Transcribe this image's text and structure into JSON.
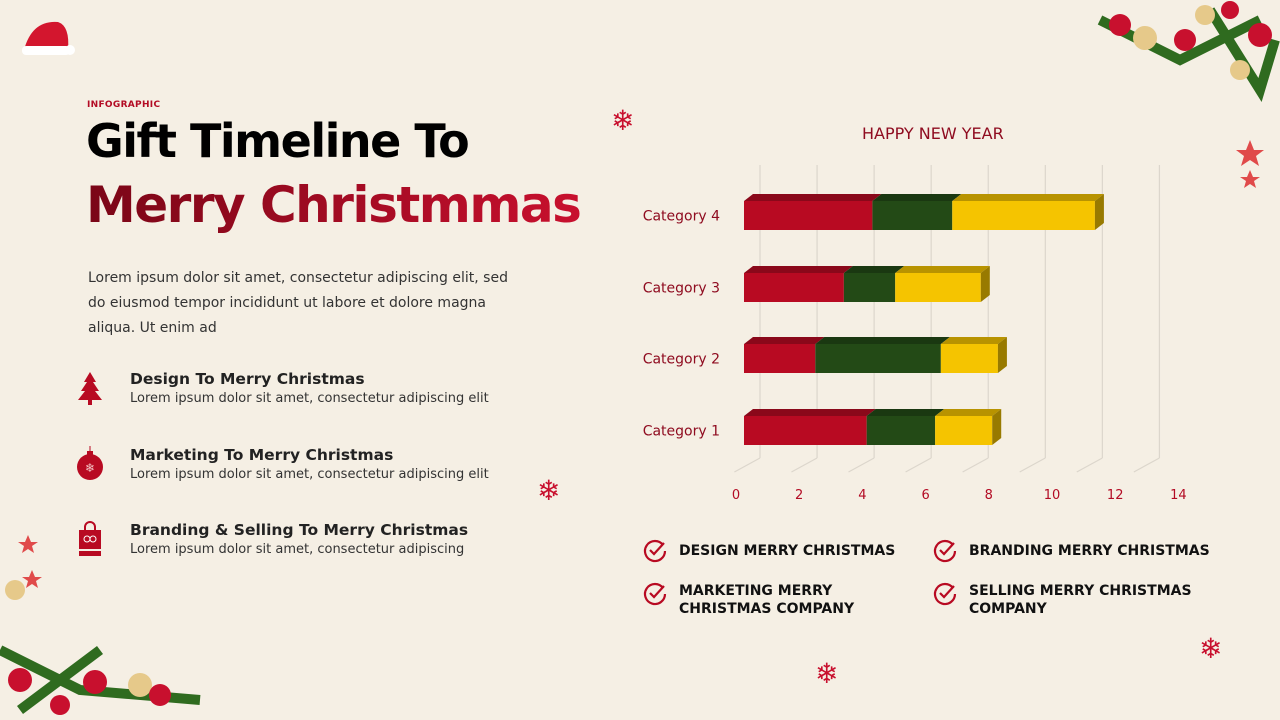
{
  "header": {
    "eyebrow": "INFOGRAPHIC",
    "title_line1": "Gift Timeline To",
    "title_line2": "Merry Christmmas"
  },
  "intro": "Lorem ipsum dolor sit amet, consectetur adipiscing elit, sed do eiusmod tempor incididunt ut labore et dolore magna aliqua. Ut enim ad",
  "items": [
    {
      "icon": "christmas-tree-icon",
      "title": "Design To Merry Christmas",
      "text": "Lorem ipsum dolor sit amet, consectetur adipiscing elit"
    },
    {
      "icon": "ornament-bauble-icon",
      "title": "Marketing To Merry Christmas",
      "text": "Lorem ipsum dolor sit amet, consectetur adipiscing elit"
    },
    {
      "icon": "gift-bag-icon",
      "title": "Branding & Selling To Merry Christmas",
      "text": "Lorem ipsum dolor sit amet, consectetur adipiscing"
    }
  ],
  "legend": [
    {
      "icon": "check-circle-icon",
      "label": "DESIGN MERRY CHRISTMAS"
    },
    {
      "icon": "check-circle-icon",
      "label": "BRANDING MERRY CHRISTMAS"
    },
    {
      "icon": "check-circle-icon",
      "label": "MARKETING MERRY CHRISTMAS COMPANY"
    },
    {
      "icon": "check-circle-icon",
      "label": "SELLING MERRY CHRISTMAS COMPANY"
    }
  ],
  "colors": {
    "red": "#b80a22",
    "green": "#234a16",
    "yellow": "#f5c400",
    "accent": "#b30b24",
    "background": "#f5efe4"
  },
  "chart_data": {
    "type": "bar",
    "orientation": "horizontal",
    "stacked": true,
    "style": "3d",
    "title": "HAPPY NEW YEAR",
    "categories": [
      "Category 1",
      "Category 2",
      "Category 3",
      "Category 4"
    ],
    "series": [
      {
        "values": [
          4.3,
          2.5,
          3.5,
          4.5
        ],
        "color": "#b80a22"
      },
      {
        "values": [
          2.4,
          4.4,
          1.8,
          2.8
        ],
        "color": "#234a16"
      },
      {
        "values": [
          2.0,
          2.0,
          3.0,
          5.0
        ],
        "color": "#f5c400"
      }
    ],
    "xlim": [
      0,
      14
    ],
    "xticks": [
      "0",
      "2",
      "4",
      "6",
      "8",
      "10",
      "12",
      "14"
    ],
    "grid": true,
    "legend": "none"
  }
}
